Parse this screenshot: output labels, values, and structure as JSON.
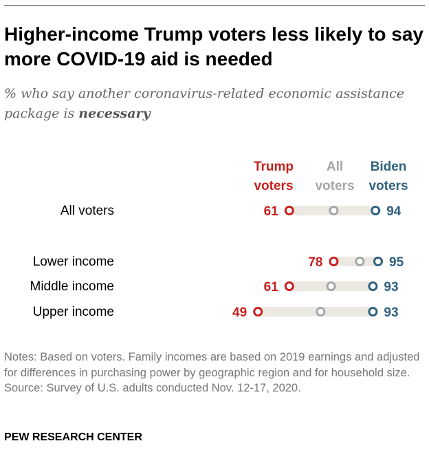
{
  "title": "Higher-income Trump voters less likely to say more COVID-19 aid is needed",
  "subtitle_prefix": "% who say another coronavirus-related economic assistance package is ",
  "subtitle_emphasis": "necessary",
  "notes": "Notes: Based on voters. Family incomes are based on 2019 earnings and adjusted for differences in purchasing power by geographic region and for household size.",
  "source": "Source: Survey of U.S. adults conducted Nov. 12-17, 2020.",
  "brand": "PEW RESEARCH CENTER",
  "chart_data": {
    "type": "dot",
    "categories": [
      "All voters",
      "Lower income",
      "Middle income",
      "Upper income"
    ],
    "series": [
      {
        "name": "Trump voters",
        "name_lines": [
          "Trump",
          "voters"
        ],
        "color": "#c8201e",
        "values": [
          61,
          78,
          61,
          49
        ],
        "labeled": true
      },
      {
        "name": "All voters",
        "name_lines": [
          "All",
          "voters"
        ],
        "color": "#a6a6a6",
        "values": [
          78,
          88,
          77,
          73
        ],
        "labeled": false
      },
      {
        "name": "Biden voters",
        "name_lines": [
          "Biden",
          "voters"
        ],
        "color": "#2f6180",
        "values": [
          94,
          95,
          93,
          93
        ],
        "labeled": true
      }
    ],
    "xlim": [
      0,
      100
    ],
    "bar_color": "#ece9e2"
  }
}
